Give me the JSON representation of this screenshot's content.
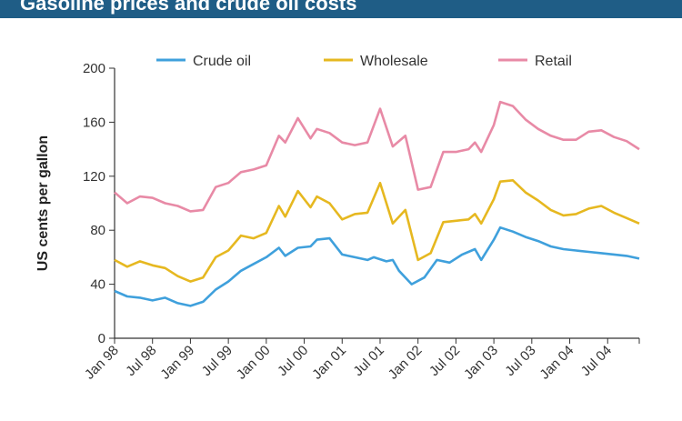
{
  "header": {
    "title": "Gasoline prices and crude oil costs"
  },
  "chart_data": {
    "type": "line",
    "title": "Gasoline prices and crude oil costs",
    "xlabel": "",
    "ylabel": "US cents per gallon",
    "ylim": [
      0,
      200
    ],
    "yticks": [
      0,
      40,
      80,
      120,
      160,
      200
    ],
    "x_tick_labels": [
      "Jan 98",
      "Jul 98",
      "Jan 99",
      "Jul 99",
      "Jan 00",
      "Jul 00",
      "Jan 01",
      "Jul 01",
      "Jan 02",
      "Jul 02",
      "Jan 03",
      "Jul 03",
      "Jan 04",
      "Jul 04"
    ],
    "x_range": [
      "Jan 98",
      "Dec 04"
    ],
    "grid": false,
    "legend_placement": "top",
    "series": [
      {
        "name": "Crude oil",
        "color": "#3fa0dc",
        "points": [
          [
            "1998-01",
            35
          ],
          [
            "1998-03",
            31
          ],
          [
            "1998-05",
            30
          ],
          [
            "1998-07",
            28
          ],
          [
            "1998-09",
            30
          ],
          [
            "1998-11",
            26
          ],
          [
            "1999-01",
            24
          ],
          [
            "1999-03",
            27
          ],
          [
            "1999-05",
            36
          ],
          [
            "1999-07",
            42
          ],
          [
            "1999-09",
            50
          ],
          [
            "1999-11",
            55
          ],
          [
            "2000-01",
            60
          ],
          [
            "2000-03",
            67
          ],
          [
            "2000-04",
            61
          ],
          [
            "2000-06",
            67
          ],
          [
            "2000-08",
            68
          ],
          [
            "2000-09",
            73
          ],
          [
            "2000-11",
            74
          ],
          [
            "2001-01",
            62
          ],
          [
            "2001-03",
            60
          ],
          [
            "2001-05",
            58
          ],
          [
            "2001-06",
            60
          ],
          [
            "2001-08",
            57
          ],
          [
            "2001-09",
            58
          ],
          [
            "2001-10",
            50
          ],
          [
            "2001-12",
            40
          ],
          [
            "2002-02",
            45
          ],
          [
            "2002-04",
            58
          ],
          [
            "2002-06",
            56
          ],
          [
            "2002-08",
            62
          ],
          [
            "2002-10",
            66
          ],
          [
            "2002-11",
            58
          ],
          [
            "2003-01",
            73
          ],
          [
            "2003-02",
            82
          ],
          [
            "2003-04",
            79
          ],
          [
            "2003-06",
            75
          ],
          [
            "2003-08",
            72
          ],
          [
            "2003-10",
            68
          ],
          [
            "2003-12",
            66
          ],
          [
            "2004-02",
            65
          ],
          [
            "2004-04",
            64
          ],
          [
            "2004-06",
            63
          ],
          [
            "2004-08",
            62
          ],
          [
            "2004-10",
            61
          ],
          [
            "2004-12",
            59
          ]
        ]
      },
      {
        "name": "Wholesale",
        "color": "#e6b820",
        "points": [
          [
            "1998-01",
            58
          ],
          [
            "1998-03",
            53
          ],
          [
            "1998-05",
            57
          ],
          [
            "1998-07",
            54
          ],
          [
            "1998-09",
            52
          ],
          [
            "1998-11",
            46
          ],
          [
            "1999-01",
            42
          ],
          [
            "1999-03",
            45
          ],
          [
            "1999-05",
            60
          ],
          [
            "1999-07",
            65
          ],
          [
            "1999-09",
            76
          ],
          [
            "1999-11",
            74
          ],
          [
            "2000-01",
            78
          ],
          [
            "2000-03",
            98
          ],
          [
            "2000-04",
            90
          ],
          [
            "2000-06",
            109
          ],
          [
            "2000-08",
            97
          ],
          [
            "2000-09",
            105
          ],
          [
            "2000-11",
            100
          ],
          [
            "2001-01",
            88
          ],
          [
            "2001-03",
            92
          ],
          [
            "2001-05",
            93
          ],
          [
            "2001-07",
            115
          ],
          [
            "2001-09",
            85
          ],
          [
            "2001-11",
            95
          ],
          [
            "2002-01",
            58
          ],
          [
            "2002-03",
            63
          ],
          [
            "2002-05",
            86
          ],
          [
            "2002-07",
            87
          ],
          [
            "2002-09",
            88
          ],
          [
            "2002-10",
            92
          ],
          [
            "2002-11",
            85
          ],
          [
            "2003-01",
            103
          ],
          [
            "2003-02",
            116
          ],
          [
            "2003-04",
            117
          ],
          [
            "2003-06",
            108
          ],
          [
            "2003-08",
            102
          ],
          [
            "2003-10",
            95
          ],
          [
            "2003-12",
            91
          ],
          [
            "2004-02",
            92
          ],
          [
            "2004-04",
            96
          ],
          [
            "2004-06",
            98
          ],
          [
            "2004-08",
            93
          ],
          [
            "2004-10",
            89
          ],
          [
            "2004-12",
            85
          ]
        ]
      },
      {
        "name": "Retail",
        "color": "#e88aa6",
        "points": [
          [
            "1998-01",
            108
          ],
          [
            "1998-03",
            100
          ],
          [
            "1998-05",
            105
          ],
          [
            "1998-07",
            104
          ],
          [
            "1998-09",
            100
          ],
          [
            "1998-11",
            98
          ],
          [
            "1999-01",
            94
          ],
          [
            "1999-03",
            95
          ],
          [
            "1999-05",
            112
          ],
          [
            "1999-07",
            115
          ],
          [
            "1999-09",
            123
          ],
          [
            "1999-11",
            125
          ],
          [
            "2000-01",
            128
          ],
          [
            "2000-03",
            150
          ],
          [
            "2000-04",
            145
          ],
          [
            "2000-06",
            163
          ],
          [
            "2000-08",
            148
          ],
          [
            "2000-09",
            155
          ],
          [
            "2000-11",
            152
          ],
          [
            "2001-01",
            145
          ],
          [
            "2001-03",
            143
          ],
          [
            "2001-05",
            145
          ],
          [
            "2001-07",
            170
          ],
          [
            "2001-09",
            142
          ],
          [
            "2001-11",
            150
          ],
          [
            "2002-01",
            110
          ],
          [
            "2002-03",
            112
          ],
          [
            "2002-05",
            138
          ],
          [
            "2002-07",
            138
          ],
          [
            "2002-09",
            140
          ],
          [
            "2002-10",
            145
          ],
          [
            "2002-11",
            138
          ],
          [
            "2003-01",
            158
          ],
          [
            "2003-02",
            175
          ],
          [
            "2003-04",
            172
          ],
          [
            "2003-06",
            162
          ],
          [
            "2003-08",
            155
          ],
          [
            "2003-10",
            150
          ],
          [
            "2003-12",
            147
          ],
          [
            "2004-02",
            147
          ],
          [
            "2004-04",
            153
          ],
          [
            "2004-06",
            154
          ],
          [
            "2004-08",
            149
          ],
          [
            "2004-10",
            146
          ],
          [
            "2004-12",
            140
          ]
        ]
      }
    ]
  }
}
